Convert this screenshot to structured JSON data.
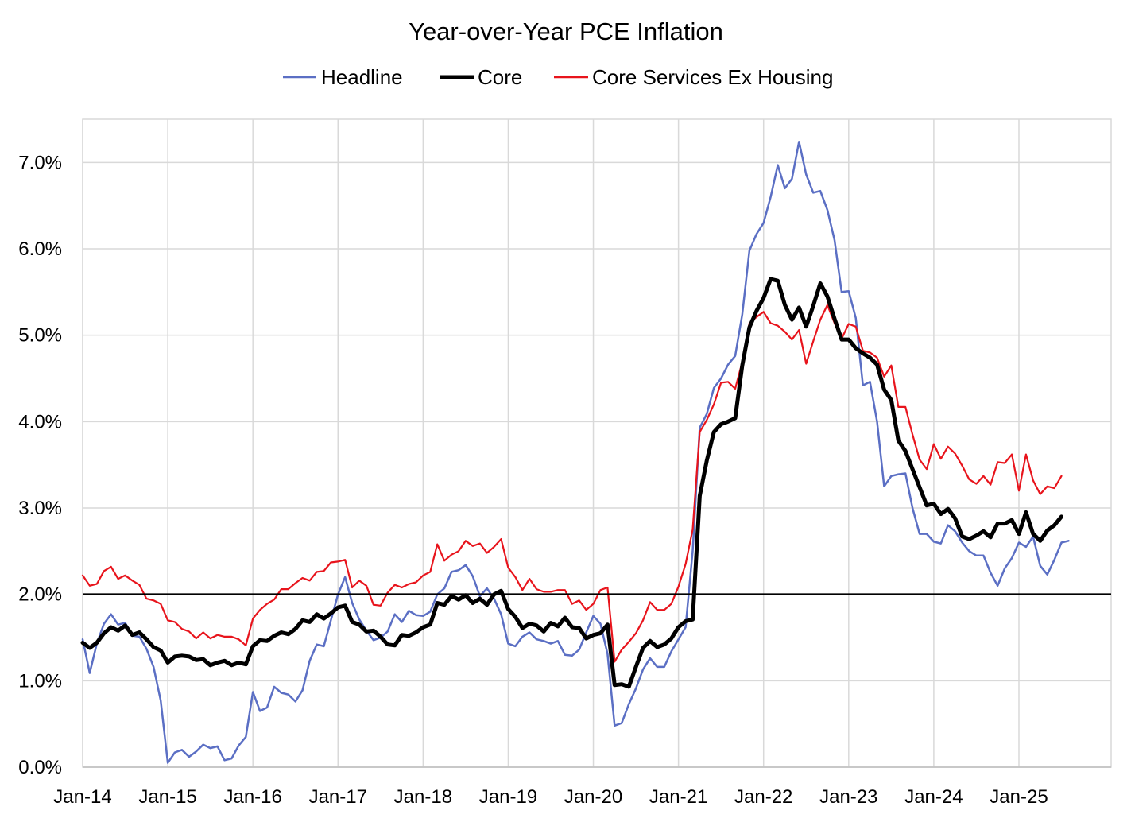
{
  "chart_data": {
    "type": "line",
    "title": "Year-over-Year PCE Inflation",
    "xlabel": "",
    "ylabel": "",
    "ylim": [
      0,
      0.075
    ],
    "yticks": [
      {
        "value": 0.0,
        "label": "0.0%"
      },
      {
        "value": 0.01,
        "label": "1.0%"
      },
      {
        "value": 0.02,
        "label": "2.0%"
      },
      {
        "value": 0.03,
        "label": "3.0%"
      },
      {
        "value": 0.04,
        "label": "4.0%"
      },
      {
        "value": 0.05,
        "label": "5.0%"
      },
      {
        "value": 0.06,
        "label": "6.0%"
      },
      {
        "value": 0.07,
        "label": "7.0%"
      }
    ],
    "x_start": "Jan-14",
    "x_count": 140,
    "xticks": [
      {
        "index": 0,
        "label": "Jan-14"
      },
      {
        "index": 12,
        "label": "Jan-15"
      },
      {
        "index": 24,
        "label": "Jan-16"
      },
      {
        "index": 36,
        "label": "Jan-17"
      },
      {
        "index": 48,
        "label": "Jan-18"
      },
      {
        "index": 60,
        "label": "Jan-19"
      },
      {
        "index": 72,
        "label": "Jan-20"
      },
      {
        "index": 84,
        "label": "Jan-21"
      },
      {
        "index": 96,
        "label": "Jan-22"
      },
      {
        "index": 108,
        "label": "Jan-23"
      },
      {
        "index": 120,
        "label": "Jan-24"
      },
      {
        "index": 132,
        "label": "Jan-25"
      }
    ],
    "reference_line": 0.02,
    "legend_position": "top-center",
    "series": [
      {
        "name": "Headline",
        "color": "#5b6fc4",
        "values": [
          0.0148,
          0.0109,
          0.0143,
          0.0166,
          0.0177,
          0.0165,
          0.0167,
          0.0152,
          0.0151,
          0.0137,
          0.0116,
          0.0077,
          0.0005,
          0.0017,
          0.002,
          0.0012,
          0.0018,
          0.0026,
          0.0022,
          0.0024,
          0.0008,
          0.001,
          0.0025,
          0.0035,
          0.0087,
          0.0065,
          0.0069,
          0.0093,
          0.0086,
          0.0084,
          0.0076,
          0.0089,
          0.0123,
          0.0142,
          0.014,
          0.017,
          0.02,
          0.022,
          0.019,
          0.0171,
          0.0158,
          0.0147,
          0.015,
          0.0157,
          0.0177,
          0.0168,
          0.0181,
          0.0176,
          0.0175,
          0.018,
          0.02,
          0.0207,
          0.0226,
          0.0228,
          0.0234,
          0.0221,
          0.0198,
          0.0207,
          0.0195,
          0.0177,
          0.0143,
          0.014,
          0.0151,
          0.0156,
          0.0148,
          0.0146,
          0.0143,
          0.0146,
          0.013,
          0.0129,
          0.0136,
          0.0156,
          0.0175,
          0.0166,
          0.0131,
          0.0048,
          0.0051,
          0.0073,
          0.0091,
          0.0113,
          0.0126,
          0.0116,
          0.0116,
          0.0134,
          0.0148,
          0.0162,
          0.025,
          0.0393,
          0.0409,
          0.0439,
          0.045,
          0.0466,
          0.0476,
          0.0524,
          0.0598,
          0.0617,
          0.063,
          0.066,
          0.0697,
          0.067,
          0.0681,
          0.0724,
          0.0686,
          0.0665,
          0.0667,
          0.0645,
          0.061,
          0.055,
          0.0551,
          0.052,
          0.0442,
          0.0446,
          0.04,
          0.0325,
          0.0337,
          0.0339,
          0.034,
          0.03,
          0.027,
          0.027,
          0.0261,
          0.0259,
          0.028,
          0.0273,
          0.026,
          0.025,
          0.0245,
          0.0245,
          0.0225,
          0.021,
          0.023,
          0.0242,
          0.026,
          0.0255,
          0.0267,
          0.0233,
          0.0223,
          0.024,
          0.026,
          0.0262
        ]
      },
      {
        "name": "Core",
        "color": "#000000",
        "values": [
          0.0144,
          0.0138,
          0.0144,
          0.0155,
          0.0162,
          0.0158,
          0.0164,
          0.0153,
          0.0156,
          0.0148,
          0.0139,
          0.0135,
          0.0121,
          0.0128,
          0.0129,
          0.0128,
          0.0124,
          0.0125,
          0.0118,
          0.0121,
          0.0123,
          0.0118,
          0.0121,
          0.0119,
          0.014,
          0.0147,
          0.0146,
          0.0152,
          0.0156,
          0.0154,
          0.016,
          0.017,
          0.0168,
          0.0177,
          0.0172,
          0.0178,
          0.0185,
          0.0187,
          0.0168,
          0.0165,
          0.0157,
          0.0158,
          0.0151,
          0.0142,
          0.0141,
          0.0153,
          0.0152,
          0.0156,
          0.0162,
          0.0165,
          0.019,
          0.0188,
          0.0198,
          0.0194,
          0.0199,
          0.019,
          0.0195,
          0.0188,
          0.02,
          0.0204,
          0.0183,
          0.0174,
          0.0161,
          0.0166,
          0.0164,
          0.0157,
          0.0167,
          0.0163,
          0.0173,
          0.0162,
          0.0161,
          0.0149,
          0.0153,
          0.0155,
          0.0165,
          0.0095,
          0.0096,
          0.0093,
          0.0116,
          0.0138,
          0.0146,
          0.0139,
          0.0142,
          0.0149,
          0.0162,
          0.0169,
          0.0171,
          0.0314,
          0.0355,
          0.0388,
          0.0397,
          0.04,
          0.0404,
          0.0465,
          0.0509,
          0.0528,
          0.0543,
          0.0565,
          0.0563,
          0.0535,
          0.0518,
          0.0532,
          0.051,
          0.0534,
          0.056,
          0.0545,
          0.0519,
          0.0495,
          0.0495,
          0.0485,
          0.0479,
          0.0474,
          0.0466,
          0.0437,
          0.0425,
          0.0378,
          0.0366,
          0.0345,
          0.0324,
          0.0303,
          0.0305,
          0.0293,
          0.0299,
          0.0288,
          0.0267,
          0.0264,
          0.0268,
          0.0273,
          0.0266,
          0.0282,
          0.0282,
          0.0286,
          0.027,
          0.0295,
          0.027,
          0.0262,
          0.0274,
          0.028,
          0.029
        ]
      },
      {
        "name": "Core Services Ex Housing",
        "color": "#e8141c",
        "values": [
          0.0222,
          0.021,
          0.0212,
          0.0227,
          0.0232,
          0.0218,
          0.0222,
          0.0216,
          0.0211,
          0.0195,
          0.0193,
          0.0189,
          0.017,
          0.0168,
          0.016,
          0.0157,
          0.0149,
          0.0156,
          0.0149,
          0.0153,
          0.0151,
          0.0151,
          0.0148,
          0.0141,
          0.0172,
          0.0182,
          0.0189,
          0.0194,
          0.0206,
          0.0206,
          0.0213,
          0.0219,
          0.0216,
          0.0226,
          0.0227,
          0.0237,
          0.0238,
          0.024,
          0.0208,
          0.0216,
          0.021,
          0.0188,
          0.0187,
          0.0202,
          0.0211,
          0.0208,
          0.0212,
          0.0214,
          0.0222,
          0.0226,
          0.0258,
          0.0239,
          0.0246,
          0.025,
          0.0262,
          0.0256,
          0.0259,
          0.0248,
          0.0255,
          0.0264,
          0.0231,
          0.022,
          0.0205,
          0.0218,
          0.0206,
          0.0203,
          0.0203,
          0.0205,
          0.0205,
          0.0189,
          0.0193,
          0.0182,
          0.0189,
          0.0205,
          0.0208,
          0.0122,
          0.0136,
          0.0145,
          0.0155,
          0.017,
          0.0191,
          0.0182,
          0.0182,
          0.0189,
          0.0209,
          0.0235,
          0.0275,
          0.0388,
          0.0402,
          0.042,
          0.0445,
          0.0446,
          0.0438,
          0.0469,
          0.0514,
          0.0521,
          0.0527,
          0.0514,
          0.0511,
          0.0504,
          0.0495,
          0.0506,
          0.0467,
          0.0493,
          0.0518,
          0.0535,
          0.0514,
          0.0496,
          0.0513,
          0.051,
          0.0482,
          0.048,
          0.0474,
          0.0452,
          0.0465,
          0.0417,
          0.0417,
          0.0385,
          0.0356,
          0.0345,
          0.0374,
          0.0357,
          0.0371,
          0.0363,
          0.0349,
          0.0333,
          0.0328,
          0.0337,
          0.0327,
          0.0353,
          0.0352,
          0.0362,
          0.032,
          0.0362,
          0.0332,
          0.0316,
          0.0325,
          0.0323,
          0.0337
        ]
      }
    ]
  }
}
